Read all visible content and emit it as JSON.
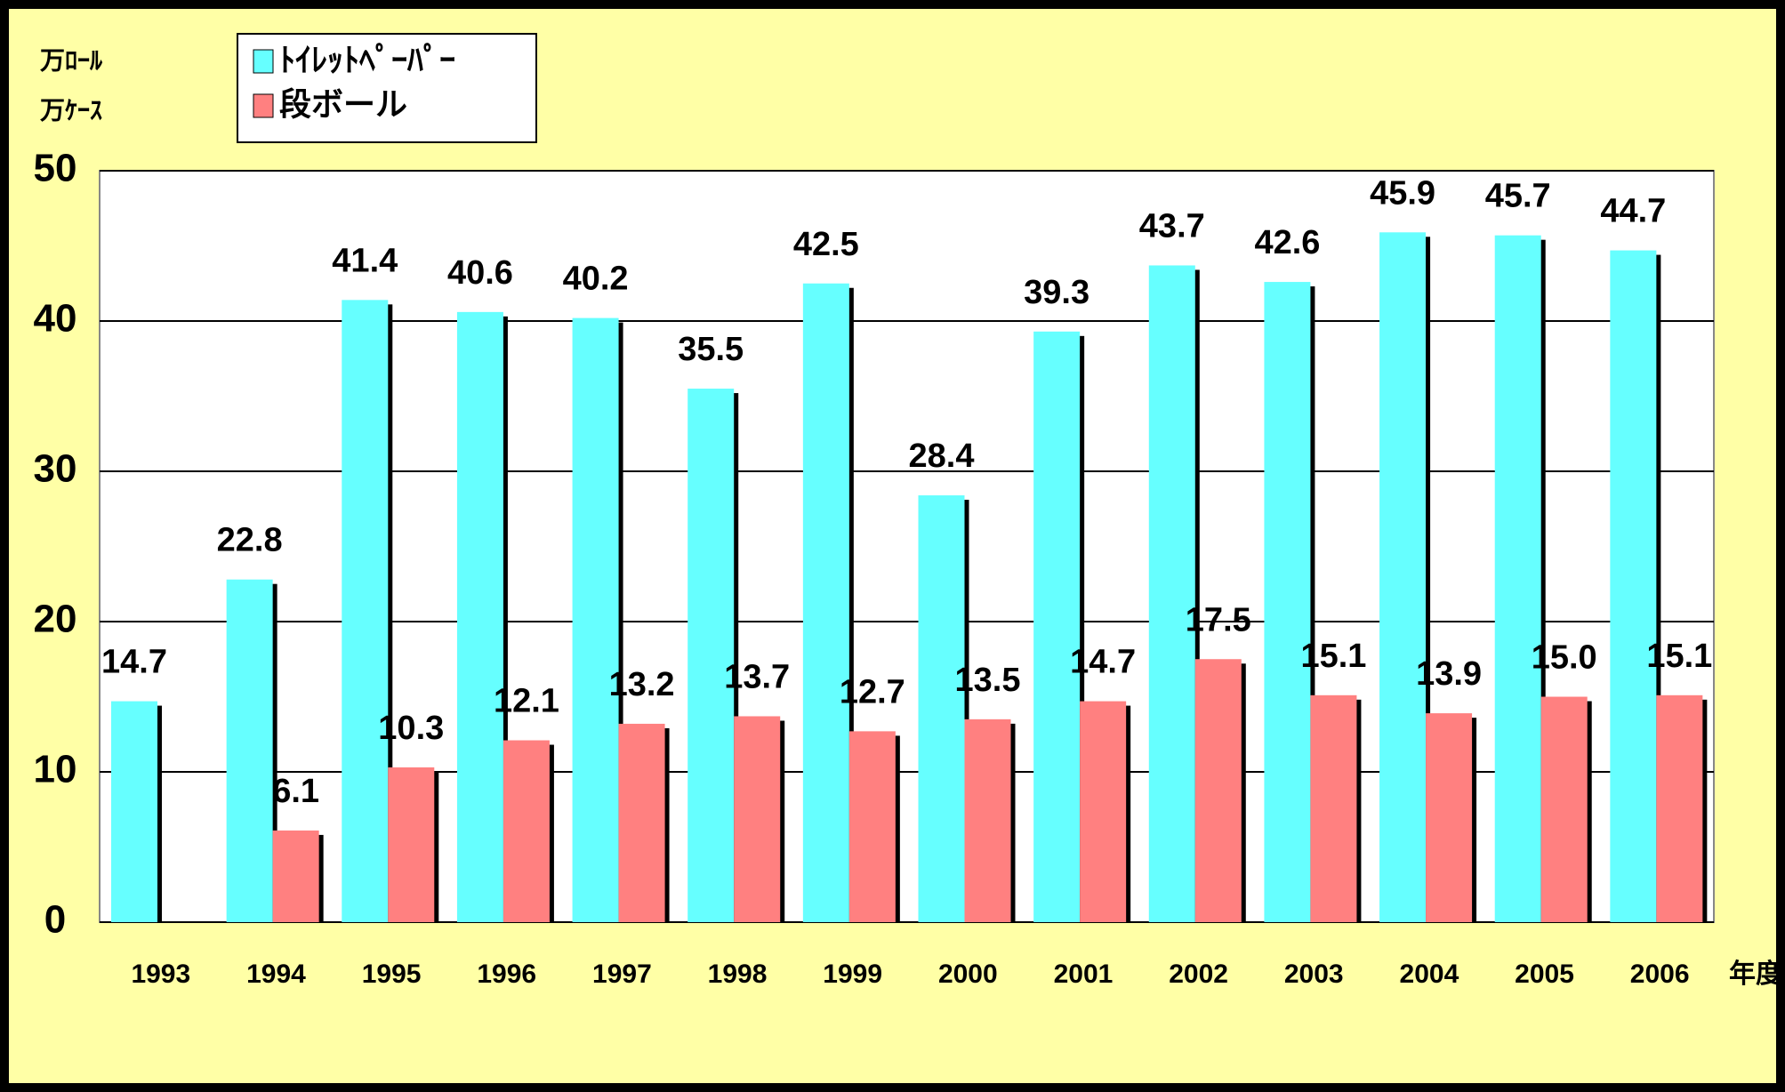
{
  "chart_data": {
    "type": "bar",
    "unit_labels": [
      "万ﾛｰﾙ",
      "万ｹｰｽ"
    ],
    "x_unit": "年度",
    "categories": [
      "1993",
      "1994",
      "1995",
      "1996",
      "1997",
      "1998",
      "1999",
      "2000",
      "2001",
      "2002",
      "2003",
      "2004",
      "2005",
      "2006"
    ],
    "series": [
      {
        "name": "ﾄｲﾚｯﾄﾍﾟｰﾊﾟｰ",
        "color": "#66ffff",
        "values": [
          14.7,
          22.8,
          41.4,
          40.6,
          40.2,
          35.5,
          42.5,
          28.4,
          39.3,
          43.7,
          42.6,
          45.9,
          45.7,
          44.7
        ],
        "value_labels": [
          "14.7",
          "22.8",
          "41.4",
          "40.6",
          "40.2",
          "35.5",
          "42.5",
          "28.4",
          "39.3",
          "43.7",
          "42.6",
          "45.9",
          "45.7",
          "44.7"
        ]
      },
      {
        "name": "段ボール",
        "color": "#ff8080",
        "values": [
          null,
          6.1,
          10.3,
          12.1,
          13.2,
          13.7,
          12.7,
          13.5,
          14.7,
          17.5,
          15.1,
          13.9,
          15.0,
          15.1
        ],
        "value_labels": [
          null,
          "6.1",
          "10.3",
          "12.1",
          "13.2",
          "13.7",
          "12.7",
          "13.5",
          "14.7",
          "17.5",
          "15.1",
          "13.9",
          "15.0",
          "15.1"
        ]
      }
    ],
    "ylim": [
      0,
      50
    ],
    "yticks": [
      0,
      10,
      20,
      30,
      40,
      50
    ],
    "grid": true
  }
}
